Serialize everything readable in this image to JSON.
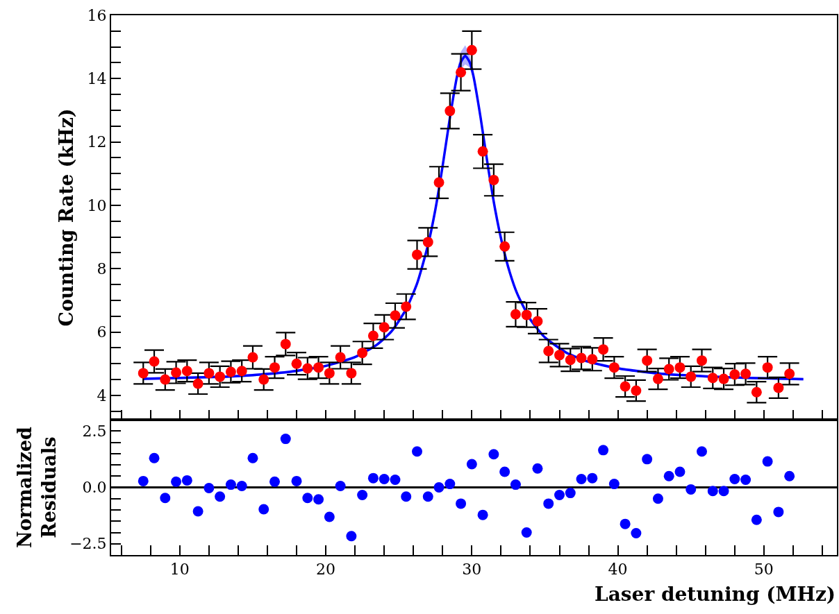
{
  "chart_data": [
    {
      "type": "scatter",
      "ylabel": "Counting Rate (kHz)",
      "xlim": [
        5.3,
        55
      ],
      "ylim": [
        3.23,
        16
      ],
      "xticks": [
        {
          "value": 6,
          "label": null
        },
        {
          "value": 8,
          "label": null
        },
        10,
        {
          "value": 12,
          "label": null
        },
        {
          "value": 14,
          "label": null
        },
        {
          "value": 16,
          "label": null
        },
        {
          "value": 18,
          "label": null
        },
        20,
        {
          "value": 22,
          "label": null
        },
        {
          "value": 24,
          "label": null
        },
        {
          "value": 26,
          "label": null
        },
        {
          "value": 28,
          "label": null
        },
        30,
        {
          "value": 32,
          "label": null
        },
        {
          "value": 34,
          "label": null
        },
        {
          "value": 36,
          "label": null
        },
        {
          "value": 38,
          "label": null
        },
        40,
        {
          "value": 42,
          "label": null
        },
        {
          "value": 44,
          "label": null
        },
        {
          "value": 46,
          "label": null
        },
        {
          "value": 48,
          "label": null
        },
        50,
        {
          "value": 52,
          "label": null
        },
        {
          "value": 54,
          "label": null
        }
      ],
      "yticks": [
        {
          "value": 3.5,
          "label": null
        },
        4,
        {
          "value": 4.5,
          "label": null
        },
        {
          "value": 5,
          "label": null
        },
        {
          "value": 5.5,
          "label": null
        },
        6,
        {
          "value": 6.5,
          "label": null
        },
        {
          "value": 7,
          "label": null
        },
        {
          "value": 7.5,
          "label": null
        },
        8,
        {
          "value": 8.5,
          "label": null
        },
        {
          "value": 9,
          "label": null
        },
        {
          "value": 9.5,
          "label": null
        },
        10,
        {
          "value": 10.5,
          "label": null
        },
        {
          "value": 11,
          "label": null
        },
        {
          "value": 11.5,
          "label": null
        },
        12,
        {
          "value": 12.5,
          "label": null
        },
        {
          "value": 13,
          "label": null
        },
        {
          "value": 13.5,
          "label": null
        },
        14,
        {
          "value": 14.5,
          "label": null
        },
        {
          "value": 15,
          "label": null
        },
        {
          "value": 15.5,
          "label": null
        },
        16
      ],
      "tick_labels": "y",
      "grid": false,
      "marker": "circle",
      "x": [
        7.5,
        8.25,
        9.0,
        9.75,
        10.5,
        11.25,
        12.0,
        12.75,
        13.5,
        14.25,
        15.0,
        15.75,
        16.5,
        17.25,
        18.0,
        18.75,
        19.5,
        20.25,
        21.0,
        21.75,
        22.5,
        23.25,
        24.0,
        24.75,
        25.5,
        26.25,
        27.0,
        27.75,
        28.5,
        29.25,
        30.0,
        30.75,
        31.5,
        32.25,
        33.0,
        33.75,
        34.5,
        35.25,
        36.0,
        36.75,
        37.5,
        38.25,
        39.0,
        39.75,
        40.5,
        41.25,
        42.0,
        42.75,
        43.5,
        44.25,
        45.0,
        45.75,
        46.5,
        47.25,
        48.0,
        48.75,
        49.5,
        50.25,
        51.0,
        51.75
      ],
      "series": [
        {
          "color": "#ff0000",
          "values": [
            4.7,
            5.07,
            4.5,
            4.72,
            4.77,
            4.37,
            4.7,
            4.59,
            4.74,
            4.77,
            5.2,
            4.5,
            4.88,
            5.62,
            5.0,
            4.85,
            4.88,
            4.7,
            5.2,
            4.7,
            5.34,
            5.88,
            6.15,
            6.52,
            6.8,
            8.44,
            8.84,
            10.72,
            12.98,
            14.2,
            14.9,
            11.7,
            10.8,
            8.7,
            6.56,
            6.54,
            6.34,
            5.4,
            5.27,
            5.12,
            5.18,
            5.14,
            5.45,
            4.88,
            4.28,
            4.15,
            5.1,
            4.52,
            4.83,
            4.88,
            4.59,
            5.1,
            4.55,
            4.52,
            4.66,
            4.68,
            4.1,
            4.88,
            4.24,
            4.68
          ],
          "errors": [
            0.34,
            0.36,
            0.33,
            0.34,
            0.34,
            0.33,
            0.34,
            0.33,
            0.34,
            0.34,
            0.36,
            0.33,
            0.34,
            0.36,
            0.35,
            0.34,
            0.34,
            0.34,
            0.36,
            0.34,
            0.36,
            0.39,
            0.39,
            0.39,
            0.4,
            0.45,
            0.45,
            0.5,
            0.56,
            0.58,
            0.6,
            0.53,
            0.5,
            0.45,
            0.39,
            0.39,
            0.39,
            0.36,
            0.36,
            0.36,
            0.36,
            0.36,
            0.36,
            0.34,
            0.33,
            0.33,
            0.35,
            0.33,
            0.34,
            0.34,
            0.33,
            0.35,
            0.33,
            0.33,
            0.34,
            0.34,
            0.33,
            0.34,
            0.33,
            0.34
          ]
        },
        {
          "type": "line",
          "marker": "none",
          "color": "#0000ff",
          "x": [
            7.5,
            10,
            12.5,
            15,
            17.5,
            20,
            22,
            23.5,
            24.5,
            25.5,
            26.25,
            27,
            27.5,
            28,
            28.5,
            29,
            29.25,
            29.55,
            29.85,
            30.1,
            30.6,
            31.1,
            31.6,
            32.1,
            32.6,
            33.1,
            34,
            35,
            36.5,
            38,
            40,
            43,
            46,
            49,
            52.7
          ],
          "values": [
            4.52,
            4.55,
            4.58,
            4.64,
            4.74,
            4.93,
            5.21,
            5.6,
            6.02,
            6.72,
            7.53,
            8.75,
            9.86,
            11.24,
            12.77,
            14.1,
            14.52,
            14.72,
            14.52,
            14.1,
            12.77,
            11.24,
            9.86,
            8.75,
            7.88,
            7.22,
            6.4,
            5.83,
            5.34,
            5.06,
            4.85,
            4.68,
            4.6,
            4.55,
            4.51
          ],
          "lower": [
            4.48,
            4.51,
            4.54,
            4.6,
            4.7,
            4.89,
            5.17,
            5.56,
            5.98,
            6.68,
            7.49,
            8.71,
            9.82,
            11.2,
            12.7,
            13.95,
            14.3,
            14.45,
            14.35,
            13.98,
            12.7,
            11.2,
            9.82,
            8.71,
            7.84,
            7.18,
            6.36,
            5.79,
            5.3,
            5.02,
            4.81,
            4.64,
            4.56,
            4.51,
            4.47
          ],
          "upper": [
            4.56,
            4.59,
            4.62,
            4.68,
            4.78,
            4.97,
            5.25,
            5.64,
            6.06,
            6.76,
            7.57,
            8.79,
            9.9,
            11.28,
            12.84,
            14.25,
            14.85,
            15.05,
            14.75,
            14.22,
            12.84,
            11.28,
            9.9,
            8.79,
            7.92,
            7.26,
            6.44,
            5.87,
            5.38,
            5.1,
            4.89,
            4.72,
            4.64,
            4.59,
            4.55
          ]
        }
      ]
    },
    {
      "type": "scatter",
      "xlabel": "Laser detuning (MHz)",
      "ylabel": "Normalized\nResiduals",
      "xlim": [
        5.3,
        55
      ],
      "ylim": [
        -3.0,
        3.0
      ],
      "xticks": [
        {
          "value": 6,
          "label": null
        },
        {
          "value": 8,
          "label": null
        },
        10,
        {
          "value": 12,
          "label": null
        },
        {
          "value": 14,
          "label": null
        },
        {
          "value": 16,
          "label": null
        },
        {
          "value": 18,
          "label": null
        },
        20,
        {
          "value": 22,
          "label": null
        },
        {
          "value": 24,
          "label": null
        },
        {
          "value": 26,
          "label": null
        },
        {
          "value": 28,
          "label": null
        },
        30,
        {
          "value": 32,
          "label": null
        },
        {
          "value": 34,
          "label": null
        },
        {
          "value": 36,
          "label": null
        },
        {
          "value": 38,
          "label": null
        },
        40,
        {
          "value": 42,
          "label": null
        },
        {
          "value": 44,
          "label": null
        },
        {
          "value": 46,
          "label": null
        },
        {
          "value": 48,
          "label": null
        },
        50,
        {
          "value": 52,
          "label": null
        },
        {
          "value": 54,
          "label": null
        }
      ],
      "yticks": [
        {
          "value": -2.5,
          "label": "−2.5"
        },
        {
          "value": -2,
          "label": null
        },
        {
          "value": -1.5,
          "label": null
        },
        {
          "value": -1,
          "label": null
        },
        {
          "value": -0.5,
          "label": null
        },
        {
          "value": 0,
          "label": "0.0"
        },
        {
          "value": 0.5,
          "label": null
        },
        {
          "value": 1,
          "label": null
        },
        {
          "value": 1.5,
          "label": null
        },
        {
          "value": 2,
          "label": null
        },
        {
          "value": 2.5,
          "label": "2.5"
        }
      ],
      "grid": false,
      "marker": "circle",
      "ref_lines": [
        {
          "axis": "y",
          "value": 0,
          "color": "#000000"
        }
      ],
      "x": [
        7.5,
        8.25,
        9.0,
        9.75,
        10.5,
        11.25,
        12.0,
        12.75,
        13.5,
        14.25,
        15.0,
        15.75,
        16.5,
        17.25,
        18.0,
        18.75,
        19.5,
        20.25,
        21.0,
        21.75,
        22.5,
        23.25,
        24.0,
        24.75,
        25.5,
        26.25,
        27.0,
        27.75,
        28.5,
        29.25,
        30.0,
        30.75,
        31.5,
        32.25,
        33.0,
        33.75,
        34.5,
        35.25,
        36.0,
        36.75,
        37.5,
        38.25,
        39.0,
        39.75,
        40.5,
        41.25,
        42.0,
        42.75,
        43.5,
        44.25,
        45.0,
        45.75,
        46.5,
        47.25,
        48.0,
        48.75,
        49.5,
        50.25,
        51.0,
        51.75
      ],
      "series": [
        {
          "color": "#0000ff",
          "values": [
            0.28,
            1.3,
            -0.47,
            0.25,
            0.31,
            -1.06,
            -0.03,
            -0.41,
            0.12,
            0.06,
            1.3,
            -0.97,
            0.25,
            2.15,
            0.28,
            -0.47,
            -0.53,
            -1.31,
            0.06,
            -2.16,
            -0.34,
            0.41,
            0.37,
            0.34,
            -0.41,
            1.59,
            -0.41,
            0.0,
            0.15,
            -0.72,
            1.03,
            -1.22,
            1.47,
            0.69,
            0.12,
            -2.0,
            0.84,
            -0.72,
            -0.34,
            -0.25,
            0.37,
            0.41,
            1.65,
            0.15,
            -1.62,
            -2.03,
            1.25,
            -0.5,
            0.5,
            0.69,
            -0.09,
            1.59,
            -0.16,
            -0.16,
            0.37,
            0.34,
            -1.44,
            1.15,
            -1.09,
            0.5
          ]
        }
      ]
    }
  ]
}
